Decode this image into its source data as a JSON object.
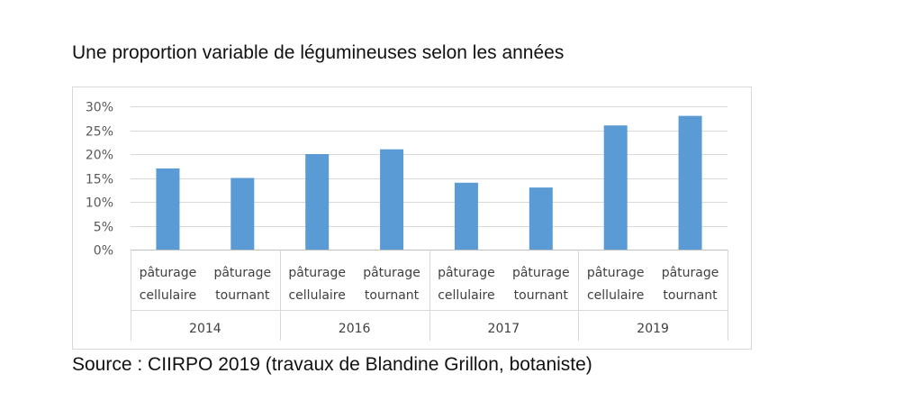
{
  "title": "Une proportion variable de légumineuses selon les années",
  "source": "Source : CIIRPO 2019 (travaux de Blandine Grillon, botaniste)",
  "chart_data": {
    "type": "bar",
    "groups": [
      {
        "label": "2014",
        "categories": [
          [
            "pâturage",
            "cellulaire"
          ],
          [
            "pâturage",
            "tournant"
          ]
        ],
        "values": [
          17,
          15
        ]
      },
      {
        "label": "2016",
        "categories": [
          [
            "pâturage",
            "cellulaire"
          ],
          [
            "pâturage",
            "tournant"
          ]
        ],
        "values": [
          20,
          21
        ]
      },
      {
        "label": "2017",
        "categories": [
          [
            "pâturage",
            "cellulaire"
          ],
          [
            "pâturage",
            "tournant"
          ]
        ],
        "values": [
          14,
          13
        ]
      },
      {
        "label": "2019",
        "categories": [
          [
            "pâturage",
            "cellulaire"
          ],
          [
            "pâturage",
            "tournant"
          ]
        ],
        "values": [
          26,
          28
        ]
      }
    ],
    "y_ticks": [
      "0%",
      "5%",
      "10%",
      "15%",
      "20%",
      "25%",
      "30%"
    ],
    "ylim": [
      0,
      30
    ],
    "unit": "%",
    "grid": true,
    "bar_color": "#5B9BD5"
  }
}
